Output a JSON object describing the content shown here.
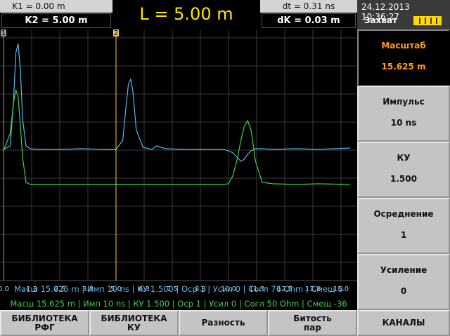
{
  "header": {
    "k1": "K1 = 0.00 m",
    "k2": "K2 = 5.00 m",
    "length": "L = 5.00 m",
    "dt": "dt = 0.31 ns",
    "dk": "dK = 0.03 m",
    "datetime": "24.12.2013 10:36:27",
    "mode": "Захват"
  },
  "chart_data": {
    "type": "line",
    "x": [
      0,
      0.3,
      0.45,
      0.55,
      0.65,
      0.75,
      0.85,
      1.0,
      1.2,
      1.5,
      2.5,
      3.5,
      4.5,
      5.0,
      5.3,
      5.45,
      5.55,
      5.65,
      5.75,
      5.9,
      6.2,
      6.6,
      6.8,
      7.2,
      8,
      9,
      9.8,
      10.0,
      10.2,
      10.4,
      10.55,
      10.7,
      10.85,
      11.0,
      11.2,
      11.5,
      12,
      13,
      14,
      15.4
    ],
    "series": [
      {
        "color": "#5ab8ec",
        "values": [
          187,
          192,
          260,
          325,
          338,
          300,
          230,
          192,
          188,
          187,
          187,
          188,
          187,
          187,
          200,
          250,
          280,
          287,
          270,
          215,
          190,
          187,
          192,
          188,
          187,
          187,
          187,
          185,
          182,
          175,
          170,
          173,
          180,
          185,
          188,
          188,
          187,
          188,
          187,
          189
        ]
      },
      {
        "color": "#3fd24a",
        "values": [
          185,
          210,
          255,
          272,
          262,
          220,
          175,
          140,
          137,
          137,
          137,
          137,
          137,
          137,
          137,
          137,
          137,
          137,
          137,
          137,
          137,
          137,
          137,
          137,
          137,
          137,
          137,
          138,
          150,
          175,
          200,
          220,
          228,
          215,
          170,
          140,
          138,
          137,
          138,
          137
        ]
      }
    ],
    "xlim": [
      0,
      15.625
    ],
    "xticks": [
      {
        "value": 0,
        "label": "0.0"
      },
      {
        "value": 1.25,
        "label": "1.3"
      },
      2.5,
      {
        "value": 3.75,
        "label": "3.8"
      },
      {
        "value": 5,
        "label": "5.0"
      },
      {
        "value": 6.25,
        "label": "6.3"
      },
      7.5,
      {
        "value": 8.75,
        "label": "8.8"
      },
      {
        "value": 10,
        "label": "10.0"
      },
      {
        "value": 11.25,
        "label": "11.3"
      },
      12.5,
      {
        "value": 13.75,
        "label": "13.8"
      },
      {
        "value": 15,
        "label": "15.0"
      }
    ],
    "ylim": [
      0,
      358
    ],
    "grid": true,
    "markers": [
      {
        "label": "1",
        "x": 0,
        "color": "#9a9a9a"
      },
      {
        "label": "2",
        "x": 5,
        "color": "#f5c35a"
      }
    ]
  },
  "info_lines": [
    {
      "text": "Масш 15.625 m | Имп 10 ns | КУ 1.500 | Оср 1 | Усил 0 | Согл 76 Ohm | Смещ 0",
      "color": "#5ab8ec"
    },
    {
      "text": "Масш 15.625 m | Имп 10 ns | КУ 1.500 | Оср 1 | Усил 0 | Согл 50 Ohm | Смещ -36",
      "color": "#3fd24a"
    }
  ],
  "side_panel": [
    {
      "label": "Масштаб",
      "value": "15.625 m"
    },
    {
      "label": "Импульс",
      "value": "10 ns"
    },
    {
      "label": "КУ",
      "value": "1.500"
    },
    {
      "label": "Осреднение",
      "value": "1"
    },
    {
      "label": "Усиление",
      "value": "0"
    }
  ],
  "bottom_buttons": [
    [
      "БИБЛИОТЕКА",
      "РФГ"
    ],
    [
      "БИБЛИОТЕКА",
      "КУ"
    ],
    [
      "Разность"
    ],
    [
      "Битость",
      "пар"
    ],
    [
      "КАНАЛЫ"
    ]
  ]
}
